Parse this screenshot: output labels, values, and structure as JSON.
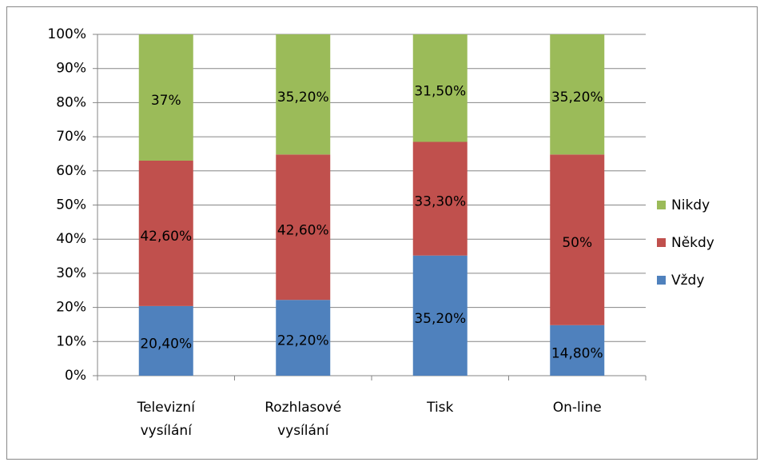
{
  "chart_data": {
    "type": "stacked_bar",
    "categories": [
      "Televizní\nvysílání",
      "Rozhlasové\nvysílání",
      "Tisk",
      "On-line"
    ],
    "series": [
      {
        "name": "Vždy",
        "color": "#4f81bd",
        "values": [
          20.4,
          22.2,
          35.2,
          14.8
        ],
        "value_labels": [
          "20,40%",
          "22,20%",
          "35,20%",
          "14,80%"
        ]
      },
      {
        "name": "Někdy",
        "color": "#c0504d",
        "values": [
          42.6,
          42.6,
          33.3,
          50
        ],
        "value_labels": [
          "42,60%",
          "42,60%",
          "33,30%",
          "50%"
        ]
      },
      {
        "name": "Nikdy",
        "color": "#9bbb59",
        "values": [
          37,
          35.2,
          31.5,
          35.2
        ],
        "value_labels": [
          "37%",
          "35,20%",
          "31,50%",
          "35,20%"
        ]
      }
    ],
    "ylim": [
      0,
      100
    ],
    "yticks": [
      {
        "value": 0,
        "label": "0%"
      },
      {
        "value": 10,
        "label": "10%"
      },
      {
        "value": 20,
        "label": "20%"
      },
      {
        "value": 30,
        "label": "30%"
      },
      {
        "value": 40,
        "label": "40%"
      },
      {
        "value": 50,
        "label": "50%"
      },
      {
        "value": 60,
        "label": "60%"
      },
      {
        "value": 70,
        "label": "70%"
      },
      {
        "value": 80,
        "label": "80%"
      },
      {
        "value": 90,
        "label": "90%"
      },
      {
        "value": 100,
        "label": "100%"
      }
    ],
    "grid": true,
    "legend": "right"
  }
}
